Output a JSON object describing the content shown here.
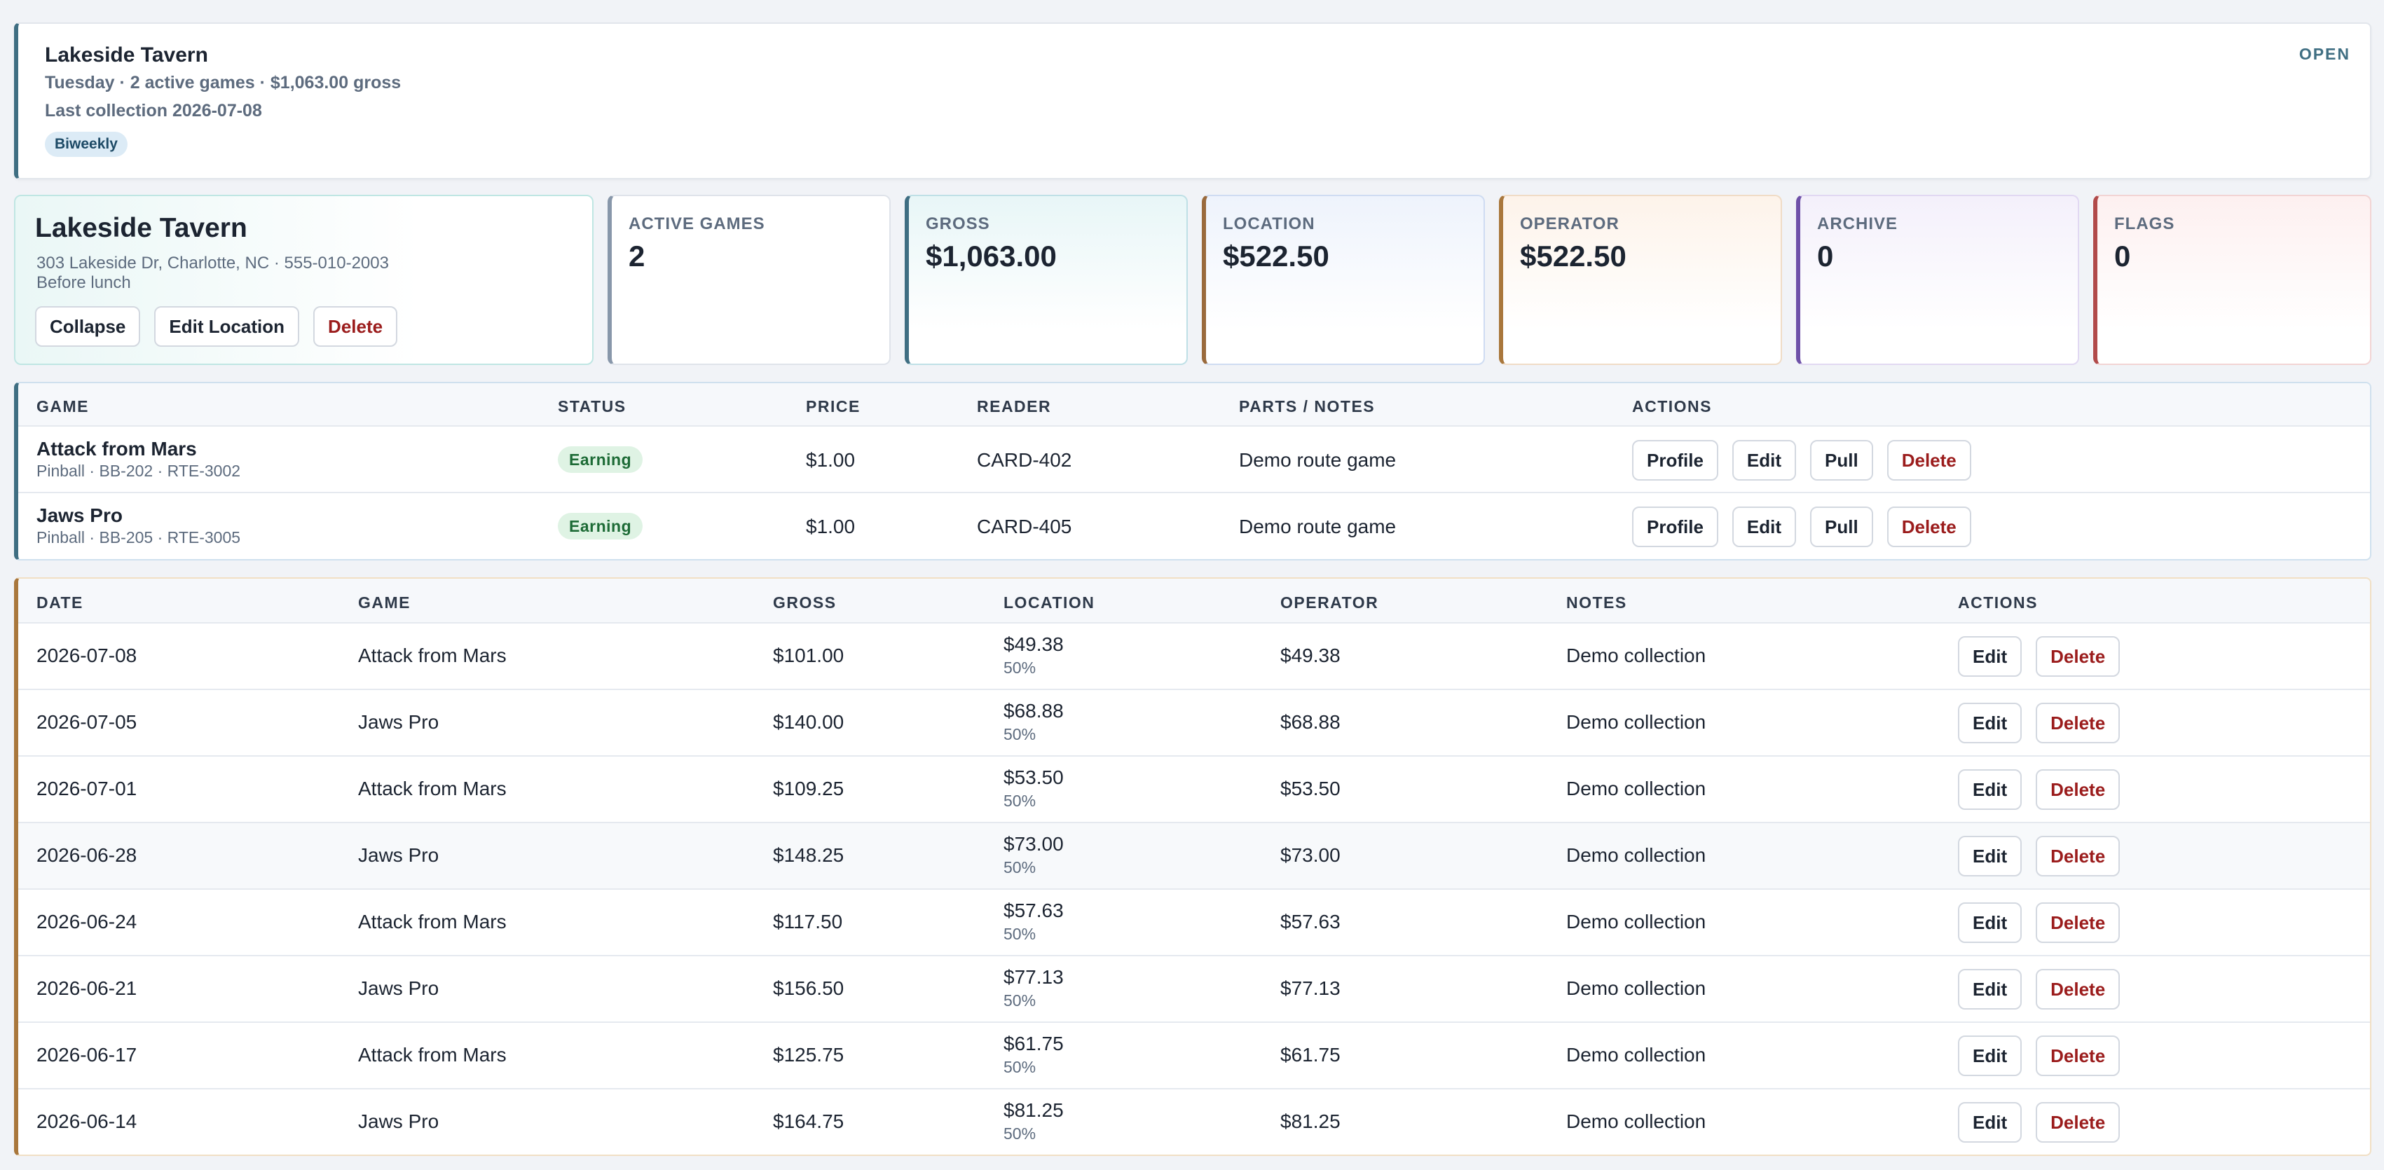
{
  "header": {
    "title": "Lakeside Tavern",
    "subtitle": "Tuesday · 2 active games · $1,063.00 gross",
    "last_collection": "Last collection 2026-07-08",
    "frequency": "Biweekly",
    "status": "OPEN"
  },
  "location": {
    "name": "Lakeside Tavern",
    "address": "303 Lakeside Dr, Charlotte, NC · 555-010-2003",
    "note": "Before lunch",
    "collapse_label": "Collapse",
    "edit_label": "Edit Location",
    "delete_label": "Delete"
  },
  "stats": {
    "active_games": {
      "label": "ACTIVE GAMES",
      "value": "2"
    },
    "gross": {
      "label": "GROSS",
      "value": "$1,063.00"
    },
    "location": {
      "label": "LOCATION",
      "value": "$522.50"
    },
    "operator": {
      "label": "OPERATOR",
      "value": "$522.50"
    },
    "archive": {
      "label": "ARCHIVE",
      "value": "0"
    },
    "flags": {
      "label": "FLAGS",
      "value": "0"
    }
  },
  "games": {
    "headers": {
      "game": "GAME",
      "status": "STATUS",
      "price": "PRICE",
      "reader": "READER",
      "notes": "PARTS / NOTES",
      "actions": "ACTIONS"
    },
    "action_labels": {
      "profile": "Profile",
      "edit": "Edit",
      "pull": "Pull",
      "delete": "Delete"
    },
    "rows": [
      {
        "name": "Attack from Mars",
        "meta": "Pinball · BB-202 · RTE-3002",
        "status": "Earning",
        "price": "$1.00",
        "reader": "CARD-402",
        "notes": "Demo route game"
      },
      {
        "name": "Jaws Pro",
        "meta": "Pinball · BB-205 · RTE-3005",
        "status": "Earning",
        "price": "$1.00",
        "reader": "CARD-405",
        "notes": "Demo route game"
      }
    ]
  },
  "collections": {
    "headers": {
      "date": "DATE",
      "game": "GAME",
      "gross": "GROSS",
      "location": "LOCATION",
      "operator": "OPERATOR",
      "notes": "NOTES",
      "actions": "ACTIONS"
    },
    "action_labels": {
      "edit": "Edit",
      "delete": "Delete"
    },
    "rows": [
      {
        "date": "2026-07-08",
        "game": "Attack from Mars",
        "gross": "$101.00",
        "location": "$49.38",
        "pct": "50%",
        "operator": "$49.38",
        "notes": "Demo collection"
      },
      {
        "date": "2026-07-05",
        "game": "Jaws Pro",
        "gross": "$140.00",
        "location": "$68.88",
        "pct": "50%",
        "operator": "$68.88",
        "notes": "Demo collection"
      },
      {
        "date": "2026-07-01",
        "game": "Attack from Mars",
        "gross": "$109.25",
        "location": "$53.50",
        "pct": "50%",
        "operator": "$53.50",
        "notes": "Demo collection"
      },
      {
        "date": "2026-06-28",
        "game": "Jaws Pro",
        "gross": "$148.25",
        "location": "$73.00",
        "pct": "50%",
        "operator": "$73.00",
        "notes": "Demo collection"
      },
      {
        "date": "2026-06-24",
        "game": "Attack from Mars",
        "gross": "$117.50",
        "location": "$57.63",
        "pct": "50%",
        "operator": "$57.63",
        "notes": "Demo collection"
      },
      {
        "date": "2026-06-21",
        "game": "Jaws Pro",
        "gross": "$156.50",
        "location": "$77.13",
        "pct": "50%",
        "operator": "$77.13",
        "notes": "Demo collection"
      },
      {
        "date": "2026-06-17",
        "game": "Attack from Mars",
        "gross": "$125.75",
        "location": "$61.75",
        "pct": "50%",
        "operator": "$61.75",
        "notes": "Demo collection"
      },
      {
        "date": "2026-06-14",
        "game": "Jaws Pro",
        "gross": "$164.75",
        "location": "$81.25",
        "pct": "50%",
        "operator": "$81.25",
        "notes": "Demo collection"
      }
    ]
  }
}
